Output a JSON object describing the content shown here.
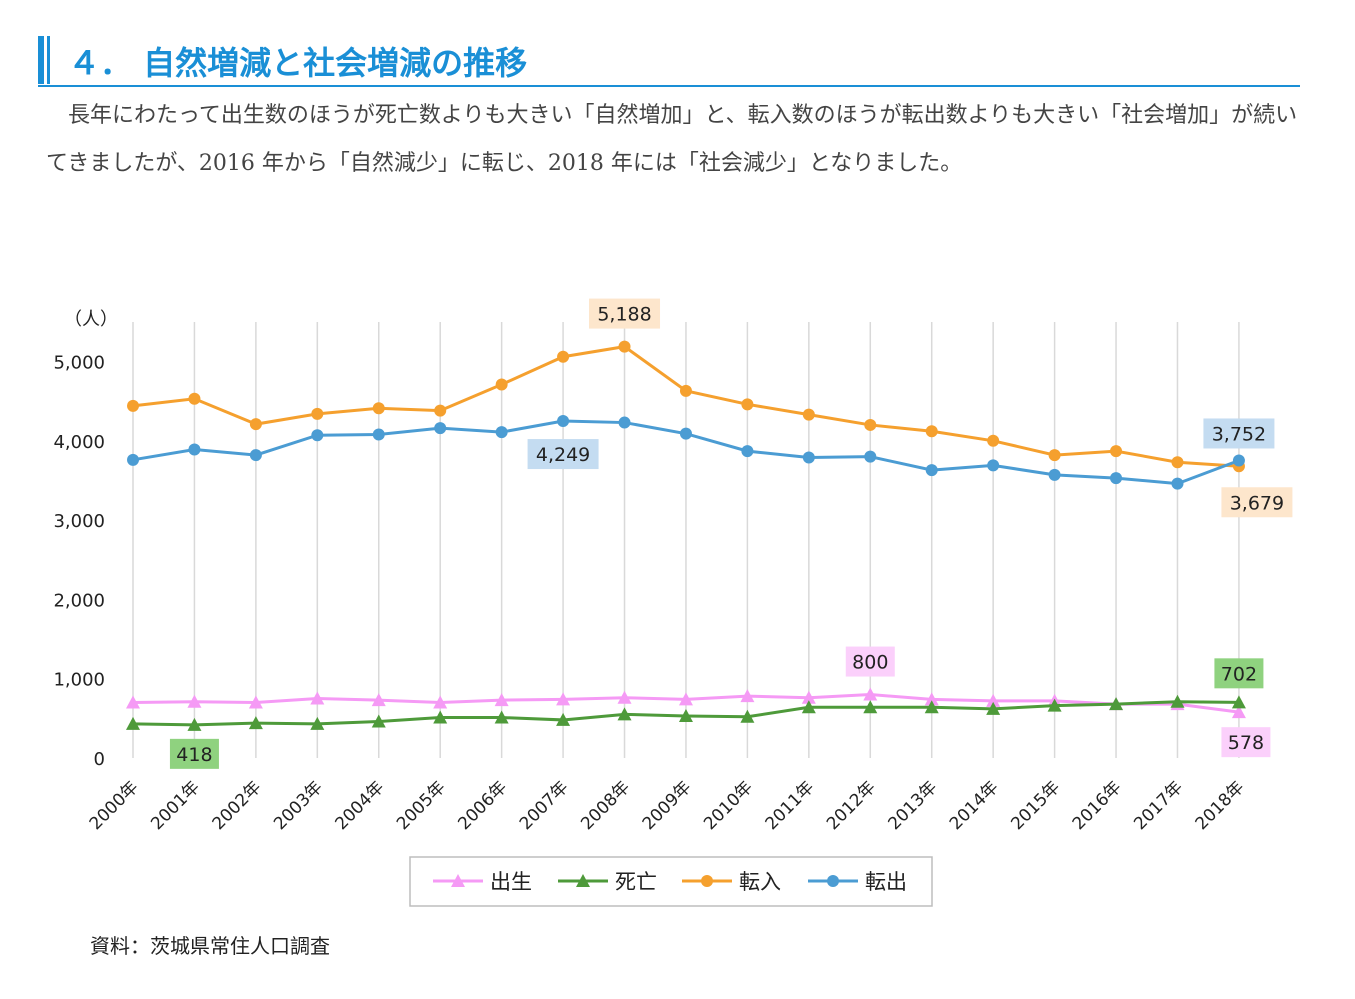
{
  "header": {
    "title": "４． 自然増減と社会増減の推移"
  },
  "intro": {
    "text": "長年にわたって出生数のほうが死亡数よりも大きい「自然増加」と、転入数のほうが転出数よりも大きい「社会増加」が続いてきましたが、2016 年から「自然減少」に転じ、2018 年には「社会減少」となりました。"
  },
  "chart_data": {
    "type": "line",
    "ylabel": "（人）",
    "ylim": [
      0,
      5500
    ],
    "yticks": [
      0,
      1000,
      2000,
      3000,
      4000,
      5000
    ],
    "ytick_labels": [
      "0",
      "1,000",
      "2,000",
      "3,000",
      "4,000",
      "5,000"
    ],
    "grid": "vertical",
    "legend_position": "bottom",
    "categories": [
      "2000年",
      "2001年",
      "2002年",
      "2003年",
      "2004年",
      "2005年",
      "2006年",
      "2007年",
      "2008年",
      "2009年",
      "2010年",
      "2011年",
      "2012年",
      "2013年",
      "2014年",
      "2015年",
      "2016年",
      "2017年",
      "2018年"
    ],
    "series": [
      {
        "name": "出生",
        "color": "#f59af5",
        "marker": "triangle",
        "values": [
          700,
          710,
          700,
          750,
          730,
          700,
          730,
          740,
          760,
          740,
          780,
          760,
          800,
          740,
          720,
          720,
          680,
          680,
          578
        ]
      },
      {
        "name": "死亡",
        "color": "#4e9a3a",
        "marker": "triangle",
        "values": [
          430,
          418,
          440,
          430,
          460,
          510,
          510,
          480,
          550,
          530,
          520,
          640,
          640,
          640,
          620,
          660,
          680,
          710,
          702
        ]
      },
      {
        "name": "転入",
        "color": "#f5a02e",
        "marker": "circle",
        "values": [
          4440,
          4530,
          4210,
          4340,
          4410,
          4380,
          4710,
          5060,
          5188,
          4630,
          4460,
          4330,
          4200,
          4120,
          4000,
          3820,
          3870,
          3730,
          3679
        ]
      },
      {
        "name": "転出",
        "color": "#4b9cd3",
        "marker": "circle",
        "values": [
          3760,
          3890,
          3820,
          4070,
          4080,
          4160,
          4110,
          4249,
          4230,
          4090,
          3870,
          3790,
          3800,
          3630,
          3690,
          3570,
          3530,
          3460,
          3752
        ]
      }
    ],
    "data_labels": [
      {
        "series": "転入",
        "category": "2008年",
        "text": "5,188",
        "bg": "#fde6cc"
      },
      {
        "series": "転出",
        "category": "2007年",
        "text": "4,249",
        "bg": "#c4dcf1"
      },
      {
        "series": "転出",
        "category": "2018年",
        "text": "3,752",
        "bg": "#c4dcf1"
      },
      {
        "series": "転入",
        "category": "2018年",
        "text": "3,679",
        "bg": "#fde6cc"
      },
      {
        "series": "出生",
        "category": "2012年",
        "text": "800",
        "bg": "#fbd0fb"
      },
      {
        "series": "死亡",
        "category": "2018年",
        "text": "702",
        "bg": "#8fd27f"
      },
      {
        "series": "出生",
        "category": "2018年",
        "text": "578",
        "bg": "#fbd0fb"
      },
      {
        "series": "死亡",
        "category": "2001年",
        "text": "418",
        "bg": "#8fd27f"
      }
    ]
  },
  "source": {
    "text": "資料：茨城県常住人口調査"
  }
}
